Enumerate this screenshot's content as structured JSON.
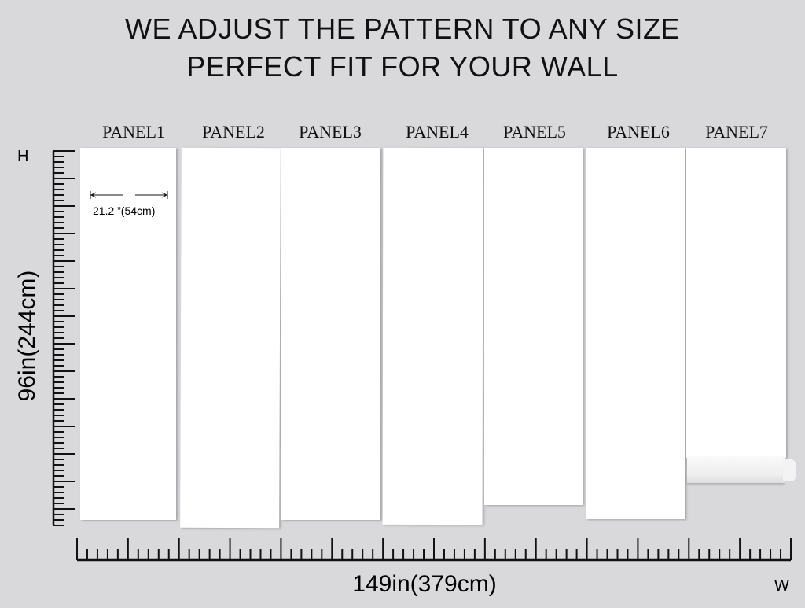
{
  "heading": {
    "line1": "WE ADJUST THE PATTERN TO ANY SIZE",
    "line2": "PERFECT FIT FOR YOUR WALL"
  },
  "panels": [
    "PANEL1",
    "PANEL2",
    "PANEL3",
    "PANEL4",
    "PANEL5",
    "PANEL6",
    "PANEL7"
  ],
  "panel_width": "21.2  ”(54cm)",
  "height_label": "96in(244cm)",
  "width_label": "149in(379cm)",
  "h_marker": "H",
  "w_marker": "W",
  "colors": {
    "background": "#d9d9db",
    "panel": "#ffffff",
    "ink": "#111111"
  }
}
